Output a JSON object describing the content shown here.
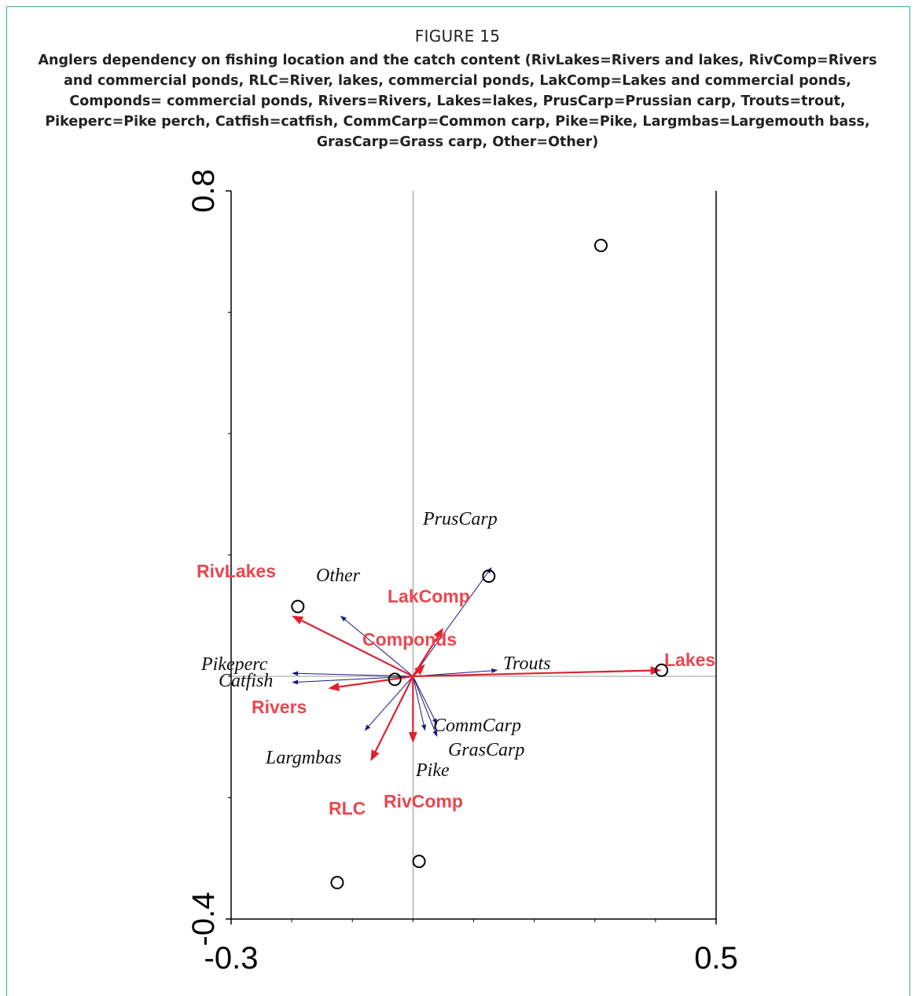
{
  "figure": {
    "label": "FIGURE 15",
    "caption": "Anglers dependency on fishing location and the catch content (RivLakes=Rivers and lakes, RivComp=Rivers and commercial ponds, RLC=River, lakes, commercial ponds, LakComp=Lakes and commercial ponds, Componds= commercial ponds, Rivers=Rivers, Lakes=lakes,  PrusCarp=Prussian carp, Trouts=trout, Pikeperc=Pike perch, Catfish=catfish, CommCarp=Common carp, Pike=Pike, Largmbas=Largemouth bass, GrasCarp=Grass carp, Other=Other)"
  },
  "colors": {
    "frame": "#3aa79a",
    "location_arrow": "#e0202e",
    "location_label": "#e8474f",
    "species_arrow": "#1a1a80",
    "species_label": "#111111",
    "sample_point": "#000000",
    "axis": "#000000",
    "zero_line": "#777777"
  },
  "chart_data": {
    "type": "scatter",
    "subtype": "ordination biplot",
    "title": "",
    "xlabel": "",
    "ylabel": "",
    "xlim": [
      -0.3,
      0.5
    ],
    "ylim": [
      -0.4,
      0.8
    ],
    "x_tick_labels": [
      "-0.3",
      "0.5"
    ],
    "y_tick_labels": [
      "-0.4",
      "0.8"
    ],
    "x_minor_ticks": [
      -0.2,
      -0.1,
      0.0,
      0.1,
      0.2,
      0.3,
      0.4
    ],
    "y_minor_ticks": [
      -0.2,
      0.0,
      0.2,
      0.4,
      0.6
    ],
    "zero_lines": true,
    "grid": false,
    "legend": "none",
    "location_arrows": [
      {
        "name": "RivLakes",
        "x": -0.2,
        "y": 0.1
      },
      {
        "name": "LakComp",
        "x": 0.05,
        "y": 0.08
      },
      {
        "name": "Componds",
        "x": 0.02,
        "y": 0.02
      },
      {
        "name": "Lakes",
        "x": 0.41,
        "y": 0.01
      },
      {
        "name": "Rivers",
        "x": -0.14,
        "y": -0.02
      },
      {
        "name": "RLC",
        "x": -0.07,
        "y": -0.14
      },
      {
        "name": "RivComp",
        "x": 0.0,
        "y": -0.11
      }
    ],
    "species_arrows": [
      {
        "name": "PrusCarp",
        "x": 0.13,
        "y": 0.18
      },
      {
        "name": "Other",
        "x": -0.12,
        "y": 0.1
      },
      {
        "name": "Pikeperc",
        "x": -0.2,
        "y": 0.005
      },
      {
        "name": "Catfish",
        "x": -0.2,
        "y": -0.01
      },
      {
        "name": "Trouts",
        "x": 0.14,
        "y": 0.01
      },
      {
        "name": "CommCarp",
        "x": 0.04,
        "y": -0.08
      },
      {
        "name": "GrasCarp",
        "x": 0.04,
        "y": -0.1
      },
      {
        "name": "Pike",
        "x": 0.02,
        "y": -0.09
      },
      {
        "name": "Largmbas",
        "x": -0.08,
        "y": -0.09
      }
    ],
    "sample_points": [
      {
        "x": 0.31,
        "y": 0.71
      },
      {
        "x": 0.125,
        "y": 0.165
      },
      {
        "x": -0.19,
        "y": 0.115
      },
      {
        "x": -0.03,
        "y": -0.005
      },
      {
        "x": 0.41,
        "y": 0.01
      },
      {
        "x": 0.01,
        "y": -0.305
      },
      {
        "x": -0.125,
        "y": -0.34
      }
    ]
  }
}
